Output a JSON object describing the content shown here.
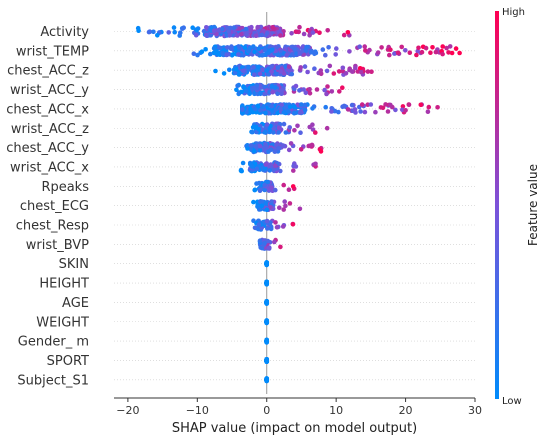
{
  "chart_data": {
    "type": "scatter",
    "subtype": "shap-beeswarm",
    "title": "",
    "xlabel": "SHAP value (impact on model output)",
    "ylabel": "",
    "xlim": [
      -22,
      30
    ],
    "xticks": [
      -20,
      -10,
      0,
      10,
      20,
      30
    ],
    "grid": "horizontal dotted",
    "features": [
      {
        "name": "Activity",
        "shap_range": [
          -19.5,
          13
        ]
      },
      {
        "name": "wrist_TEMP",
        "shap_range": [
          -11,
          28
        ]
      },
      {
        "name": "chest_ACC_z",
        "shap_range": [
          -7.5,
          16
        ]
      },
      {
        "name": "wrist_ACC_y",
        "shap_range": [
          -5,
          12
        ]
      },
      {
        "name": "chest_ACC_x",
        "shap_range": [
          -3.5,
          25
        ]
      },
      {
        "name": "wrist_ACC_z",
        "shap_range": [
          -2.5,
          9
        ]
      },
      {
        "name": "chest_ACC_y",
        "shap_range": [
          -3.5,
          8
        ]
      },
      {
        "name": "wrist_ACC_x",
        "shap_range": [
          -4,
          7.5
        ]
      },
      {
        "name": "Rpeaks",
        "shap_range": [
          -2,
          4
        ]
      },
      {
        "name": "chest_ECG",
        "shap_range": [
          -2,
          5
        ]
      },
      {
        "name": "chest_Resp",
        "shap_range": [
          -2,
          4
        ]
      },
      {
        "name": "wrist_BVP",
        "shap_range": [
          -2,
          2
        ]
      },
      {
        "name": "SKIN",
        "shap_range": [
          0,
          0
        ]
      },
      {
        "name": "HEIGHT",
        "shap_range": [
          0,
          0
        ]
      },
      {
        "name": "AGE",
        "shap_range": [
          0,
          0
        ]
      },
      {
        "name": "WEIGHT",
        "shap_range": [
          0,
          0
        ]
      },
      {
        "name": "Gender_ m",
        "shap_range": [
          0,
          0
        ]
      },
      {
        "name": "SPORT",
        "shap_range": [
          0,
          0
        ]
      },
      {
        "name": "Subject_S1",
        "shap_range": [
          0,
          0
        ]
      }
    ],
    "colorbar": {
      "title": "Feature value",
      "high_label": "High",
      "low_label": "Low",
      "high_color": "#ff0052",
      "low_color": "#008bfb"
    }
  }
}
